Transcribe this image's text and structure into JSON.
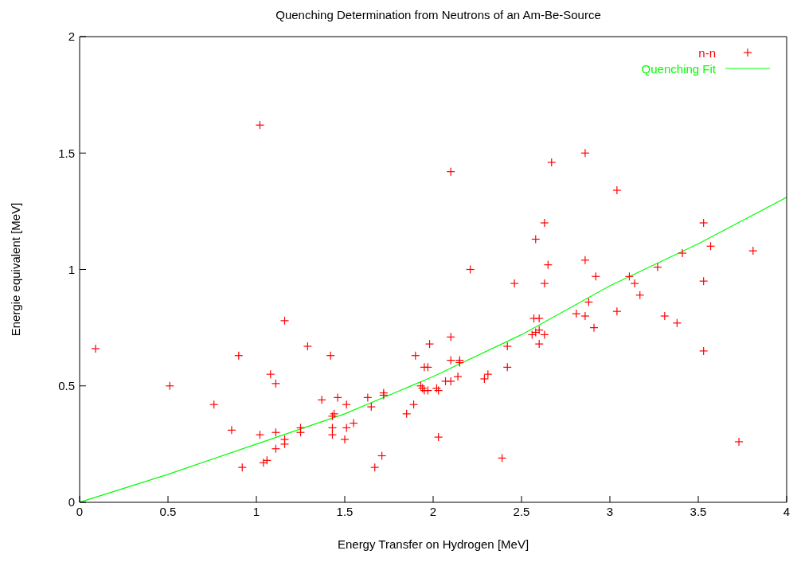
{
  "chart_data": {
    "type": "scatter",
    "title": "Quenching Determination from Neutrons of an Am-Be-Source",
    "xlabel": "Energy Transfer on Hydrogen [MeV]",
    "ylabel": "Energie equivalent [MeV]",
    "xlim": [
      0,
      4
    ],
    "xticks": [
      0,
      0.5,
      1,
      1.5,
      2,
      2.5,
      3,
      3.5,
      4
    ],
    "ylim": [
      0,
      2
    ],
    "yticks": [
      0,
      0.5,
      1,
      1.5,
      2
    ],
    "grid": false,
    "legend": "top right",
    "marker": "cross",
    "series": [
      {
        "name": "n-n",
        "color": "#ff0000",
        "x": [
          0.09,
          0.51,
          0.76,
          0.86,
          0.9,
          0.92,
          1.02,
          1.02,
          1.04,
          1.06,
          1.08,
          1.11,
          1.11,
          1.11,
          1.16,
          1.16,
          1.16,
          1.29,
          1.25,
          1.25,
          1.37,
          1.42,
          1.46,
          1.43,
          1.44,
          1.51,
          1.43,
          1.43,
          1.51,
          1.5,
          1.55,
          1.63,
          1.65,
          1.72,
          1.72,
          1.71,
          1.67,
          1.85,
          1.89,
          1.9,
          1.93,
          1.94,
          1.95,
          1.97,
          1.95,
          1.97,
          1.98,
          2.02,
          2.03,
          2.03,
          2.07,
          2.1,
          2.1,
          2.1,
          2.1,
          2.15,
          2.15,
          2.14,
          2.21,
          2.29,
          2.31,
          2.39,
          2.42,
          2.42,
          2.46,
          2.58,
          2.63,
          2.65,
          2.63,
          2.57,
          2.6,
          2.56,
          2.58,
          2.6,
          2.63,
          2.6,
          2.67,
          2.86,
          3.04,
          3.53,
          2.86,
          3.57,
          3.81,
          3.41,
          3.27,
          2.92,
          3.11,
          3.14,
          3.17,
          3.53,
          2.88,
          2.81,
          2.86,
          3.04,
          2.91,
          3.31,
          3.38,
          3.53,
          3.73
        ],
        "values": [
          0.66,
          0.5,
          0.42,
          0.31,
          0.63,
          0.15,
          1.62,
          0.29,
          0.17,
          0.18,
          0.55,
          0.51,
          0.3,
          0.23,
          0.78,
          0.27,
          0.25,
          0.67,
          0.3,
          0.32,
          0.44,
          0.63,
          0.45,
          0.37,
          0.38,
          0.42,
          0.32,
          0.29,
          0.32,
          0.27,
          0.34,
          0.45,
          0.41,
          0.47,
          0.46,
          0.2,
          0.15,
          0.38,
          0.42,
          0.63,
          0.5,
          0.49,
          0.58,
          0.58,
          0.48,
          0.48,
          0.68,
          0.49,
          0.48,
          0.28,
          0.52,
          0.52,
          1.42,
          0.71,
          0.61,
          0.61,
          0.6,
          0.54,
          1.0,
          0.53,
          0.55,
          0.19,
          0.67,
          0.58,
          0.94,
          1.13,
          1.2,
          1.02,
          0.94,
          0.79,
          0.79,
          0.72,
          0.73,
          0.74,
          0.72,
          0.68,
          1.46,
          1.5,
          1.34,
          1.2,
          1.04,
          1.1,
          1.08,
          1.07,
          1.01,
          0.97,
          0.97,
          0.94,
          0.89,
          0.95,
          0.86,
          0.81,
          0.8,
          0.82,
          0.75,
          0.8,
          0.77,
          0.65,
          0.26
        ]
      },
      {
        "name": "Quenching Fit",
        "type": "line",
        "color": "#00ff00",
        "marker": "none",
        "line_style": "solid",
        "x": [
          0,
          0.5,
          1,
          1.5,
          2,
          2.5,
          3,
          3.5,
          4
        ],
        "values": [
          0,
          0.12,
          0.25,
          0.38,
          0.54,
          0.72,
          0.93,
          1.11,
          1.31
        ]
      }
    ]
  }
}
